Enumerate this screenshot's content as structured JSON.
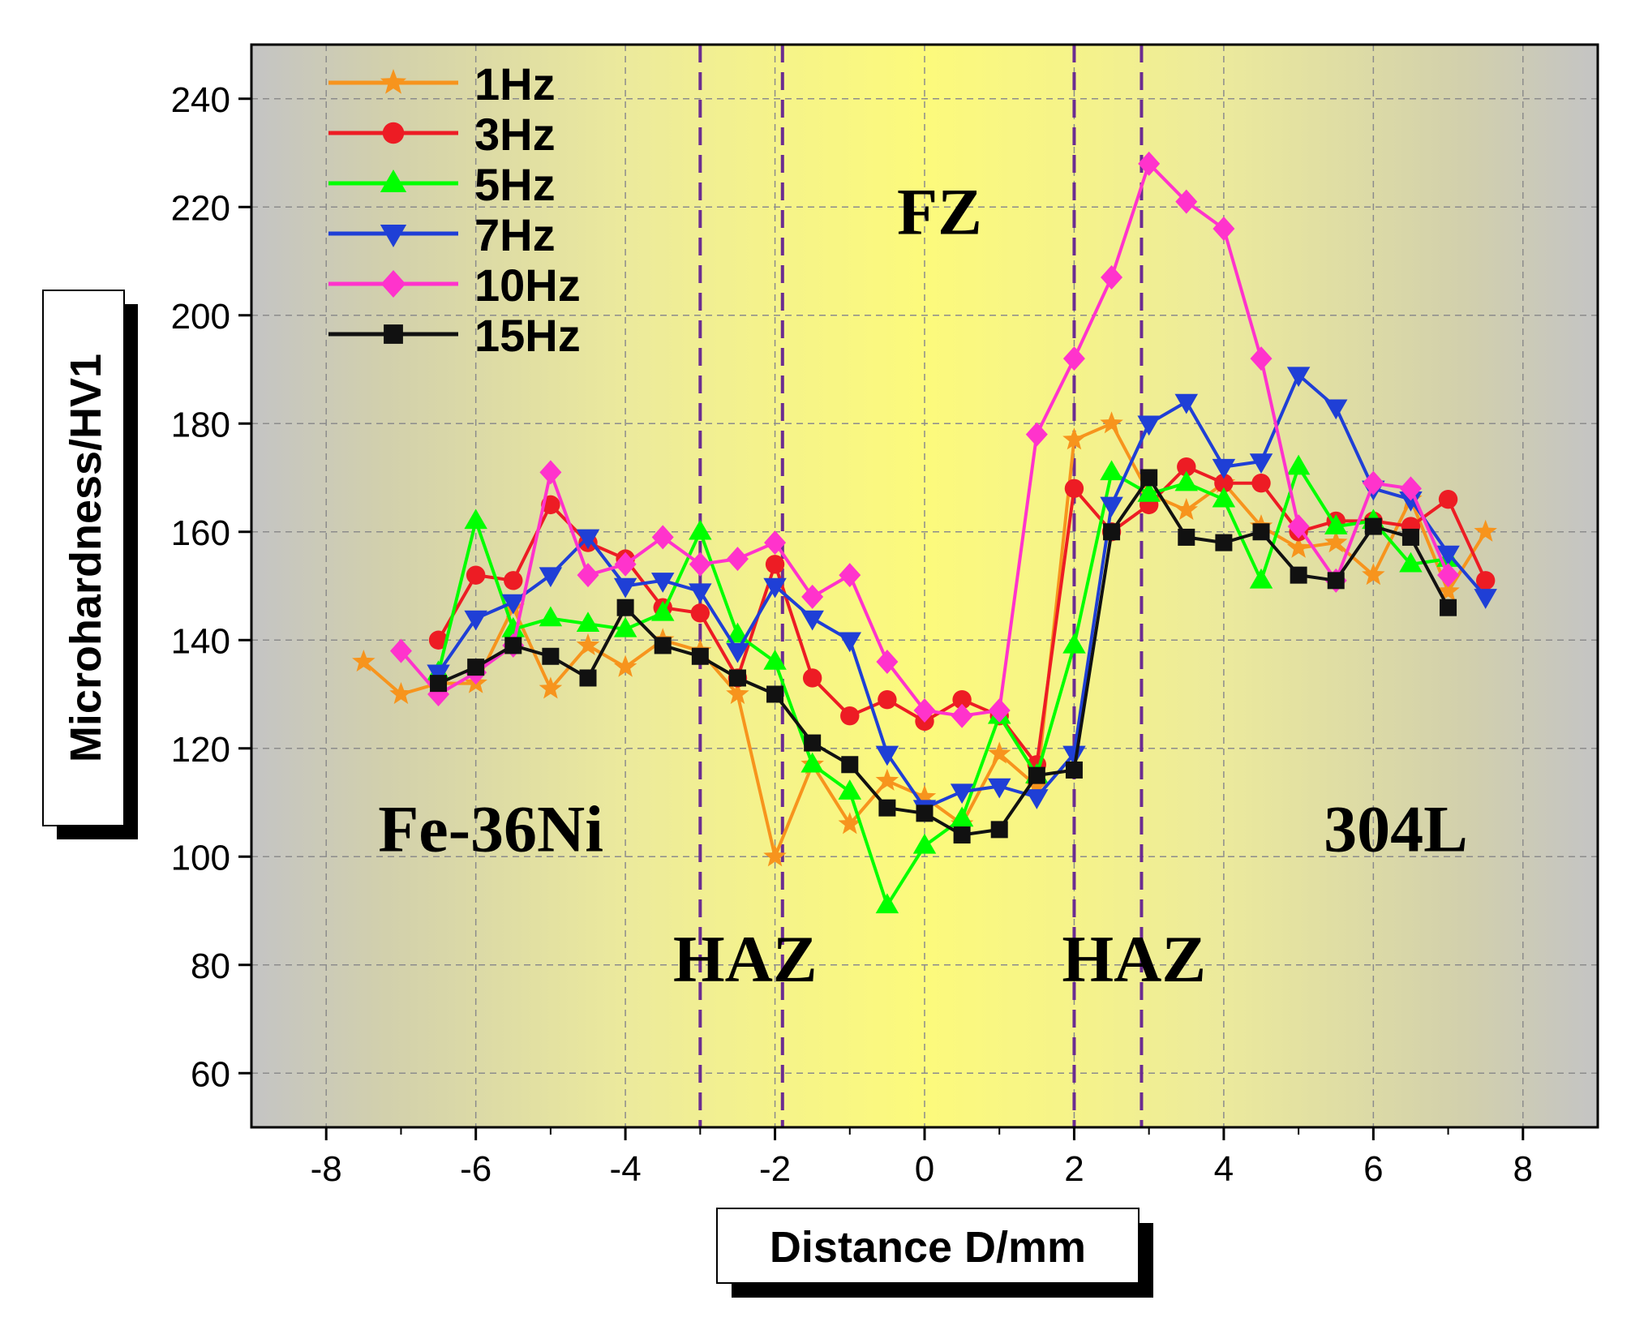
{
  "chart_data": {
    "type": "line",
    "title": "",
    "xlabel": "Distance D/mm",
    "ylabel": "Microhardness/HV1",
    "xlim": [
      -9,
      9
    ],
    "ylim": [
      50,
      250
    ],
    "xticks": [
      -8,
      -6,
      -4,
      -2,
      0,
      2,
      4,
      6,
      8
    ],
    "yticks": [
      60,
      80,
      100,
      120,
      140,
      160,
      180,
      200,
      220,
      240
    ],
    "grid": true,
    "legend_position": "top-left",
    "region_boundaries": [
      -3,
      -1.9,
      2,
      2.9
    ],
    "regions": [
      {
        "label": "Fe-36Ni",
        "x": -5.8,
        "y": 101
      },
      {
        "label": "HAZ",
        "x": -2.4,
        "y": 77
      },
      {
        "label": "FZ",
        "x": 0.2,
        "y": 215
      },
      {
        "label": "HAZ",
        "x": 2.8,
        "y": 77
      },
      {
        "label": "304L",
        "x": 6.3,
        "y": 101
      }
    ],
    "series": [
      {
        "name": "1Hz",
        "color": "#f7941d",
        "marker": "star",
        "x": [
          -7.5,
          -7,
          -6.5,
          -6,
          -5.5,
          -5,
          -4.5,
          -4,
          -3.5,
          -3,
          -2.5,
          -2,
          -1.5,
          -1,
          -0.5,
          0,
          0.5,
          1,
          1.5,
          2,
          2.5,
          3,
          3.5,
          4,
          4.5,
          5,
          5.5,
          6,
          6.5,
          7,
          7.5
        ],
        "y": [
          136,
          130,
          132,
          132,
          146,
          131,
          139,
          135,
          140,
          138,
          130,
          100,
          117,
          106,
          114,
          111,
          106,
          119,
          113,
          177,
          180,
          167,
          164,
          169,
          161,
          157,
          158,
          152,
          166,
          149,
          160
        ]
      },
      {
        "name": "3Hz",
        "color": "#ed1c24",
        "marker": "circle",
        "x": [
          -6.5,
          -6,
          -5.5,
          -5,
          -4.5,
          -4,
          -3.5,
          -3,
          -2.5,
          -2,
          -1.5,
          -1,
          -0.5,
          0,
          0.5,
          1,
          1.5,
          2,
          2.5,
          3,
          3.5,
          4,
          4.5,
          5,
          5.5,
          6,
          6.5,
          7,
          7.5
        ],
        "y": [
          140,
          152,
          151,
          165,
          158,
          155,
          146,
          145,
          133,
          154,
          133,
          126,
          129,
          125,
          129,
          126,
          117,
          168,
          160,
          165,
          172,
          169,
          169,
          160,
          162,
          162,
          161,
          166,
          151
        ]
      },
      {
        "name": "5Hz",
        "color": "#00ff00",
        "marker": "triangle-up",
        "x": [
          -6.5,
          -6,
          -5.5,
          -5,
          -4.5,
          -4,
          -3.5,
          -3,
          -2.5,
          -2,
          -1.5,
          -1,
          -0.5,
          0,
          0.5,
          1,
          1.5,
          2,
          2.5,
          3,
          3.5,
          4,
          4.5,
          5,
          5.5,
          6,
          6.5,
          7
        ],
        "y": [
          134,
          162,
          142,
          144,
          143,
          142,
          145,
          160,
          141,
          136,
          117,
          112,
          91,
          102,
          107,
          126,
          115,
          139,
          171,
          167,
          169,
          166,
          151,
          172,
          161,
          162,
          154,
          155
        ]
      },
      {
        "name": "7Hz",
        "color": "#1f3fd6",
        "marker": "triangle-down",
        "x": [
          -6.5,
          -6,
          -5.5,
          -5,
          -4.5,
          -4,
          -3.5,
          -3,
          -2.5,
          -2,
          -1.5,
          -1,
          -0.5,
          0,
          0.5,
          1,
          1.5,
          2,
          2.5,
          3,
          3.5,
          4,
          4.5,
          5,
          5.5,
          6,
          6.5,
          7,
          7.5
        ],
        "y": [
          134,
          144,
          147,
          152,
          159,
          150,
          151,
          149,
          138,
          150,
          144,
          140,
          119,
          109,
          112,
          113,
          111,
          119,
          165,
          180,
          184,
          172,
          173,
          189,
          183,
          168,
          166,
          156,
          148
        ]
      },
      {
        "name": "10Hz",
        "color": "#ff33cc",
        "marker": "diamond",
        "x": [
          -7,
          -6.5,
          -6,
          -5.5,
          -5,
          -4.5,
          -4,
          -3.5,
          -3,
          -2.5,
          -2,
          -1.5,
          -1,
          -0.5,
          0,
          0.5,
          1,
          1.5,
          2,
          2.5,
          3,
          3.5,
          4,
          4.5,
          5,
          5.5,
          6,
          6.5,
          7
        ],
        "y": [
          138,
          130,
          134,
          139,
          171,
          152,
          154,
          159,
          154,
          155,
          158,
          148,
          152,
          136,
          127,
          126,
          127,
          178,
          192,
          207,
          228,
          221,
          216,
          192,
          161,
          151,
          169,
          168,
          152
        ]
      },
      {
        "name": "15Hz",
        "color": "#111111",
        "marker": "square",
        "x": [
          -6.5,
          -6,
          -5.5,
          -5,
          -4.5,
          -4,
          -3.5,
          -3,
          -2.5,
          -2,
          -1.5,
          -1,
          -0.5,
          0,
          0.5,
          1,
          1.5,
          2,
          2.5,
          3,
          3.5,
          4,
          4.5,
          5,
          5.5,
          6,
          6.5,
          7
        ],
        "y": [
          132,
          135,
          139,
          137,
          133,
          146,
          139,
          137,
          133,
          130,
          121,
          117,
          109,
          108,
          104,
          105,
          115,
          116,
          160,
          170,
          159,
          158,
          160,
          152,
          151,
          161,
          159,
          146
        ]
      }
    ]
  }
}
